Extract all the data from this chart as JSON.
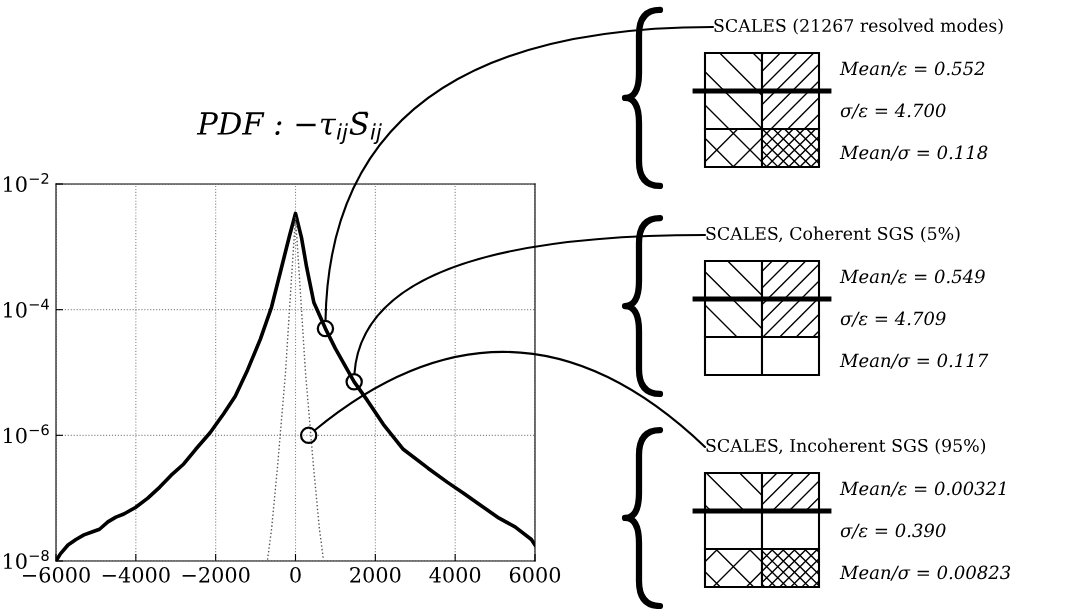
{
  "chart_data": {
    "type": "line",
    "title": "PDF : −τ$_{ij}$S̄$_{ij}$",
    "log": "y",
    "grid": true,
    "marker": "none",
    "xlim": [
      -6000,
      6000
    ],
    "xticks": [
      {
        "value": -6000,
        "label": "−6000"
      },
      {
        "value": -4000,
        "label": "−4000"
      },
      {
        "value": -2000,
        "label": "−2000"
      },
      0,
      2000,
      4000,
      6000
    ],
    "ylim": [
      1e-08,
      0.01
    ],
    "yticks": [
      {
        "value": 1e-08,
        "label": "10$^{−8}$"
      },
      {
        "value": 1e-06,
        "label": "10$^{−6}$"
      },
      {
        "value": 0.0001,
        "label": "10$^{−4}$"
      },
      {
        "value": 0.01,
        "label": "10$^{−2}$"
      }
    ],
    "series": [
      {
        "color": "#000000",
        "line_style": "solid",
        "x": [
          -6000,
          -5890,
          -5700,
          -5500,
          -5300,
          -5100,
          -4910,
          -4700,
          -4500,
          -4300,
          -4010,
          -3700,
          -3400,
          -3120,
          -2800,
          -2500,
          -2140,
          -1800,
          -1510,
          -1200,
          -880,
          -600,
          -350,
          -150,
          0,
          150,
          280,
          460,
          750,
          1000,
          1470,
          1800,
          2200,
          2700,
          3320,
          3800,
          4210,
          4600,
          5100,
          5500,
          5910,
          6000
        ],
        "values": [
          1e-08,
          1.3e-08,
          1.8e-08,
          2.2e-08,
          2.6e-08,
          2.9e-08,
          3.2e-08,
          4.2e-08,
          5e-08,
          5.6e-08,
          7.1e-08,
          1e-07,
          1.5e-07,
          2.3e-07,
          3.5e-07,
          6e-07,
          1.1e-06,
          2.2e-06,
          4.2e-06,
          1.1e-05,
          3.4e-05,
          0.00011,
          0.00047,
          0.0015,
          0.0034,
          0.0014,
          0.00047,
          0.00013,
          5e-05,
          2.4e-05,
          7.1e-06,
          3.6e-06,
          1.5e-06,
          6e-07,
          3e-07,
          1.8e-07,
          1.2e-07,
          8e-08,
          4.8e-08,
          3.5e-08,
          2.2e-08,
          1.8e-08
        ]
      },
      {
        "color": "#555555",
        "line_style": "dotted",
        "x": [
          -700,
          -600,
          -450,
          -250,
          -100,
          0,
          100,
          250,
          450,
          600,
          700
        ],
        "values": [
          1.05e-08,
          3.2e-08,
          3.2e-07,
          1e-05,
          0.00032,
          0.003,
          0.00032,
          1e-05,
          3.2e-07,
          3.2e-08,
          1.05e-08
        ]
      }
    ],
    "annotations": [
      {
        "text": "SCALES (21267 resolved modes)",
        "x": 750,
        "y": 5e-05
      },
      "Mean/ε = 0.552",
      "σ/ε = 4.700",
      "Mean/σ = 0.118",
      {
        "text": "SCALES, Coherent SGS (5%)",
        "x": 1470,
        "y": 7.1e-06
      },
      "Mean/ε = 0.549",
      "σ/ε = 4.709",
      "Mean/σ = 0.117",
      {
        "text": "SCALES, Incoherent SGS (95%)",
        "x": 330,
        "y": 1e-06
      },
      "Mean/ε = 0.00321",
      "σ/ε = 0.390",
      "Mean/σ = 0.00823"
    ]
  }
}
